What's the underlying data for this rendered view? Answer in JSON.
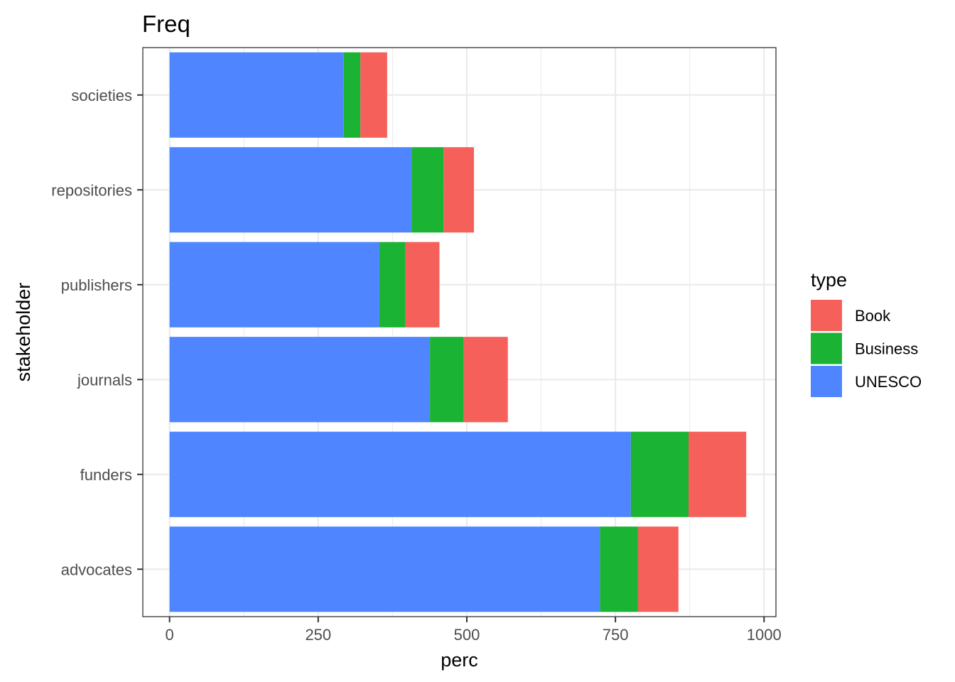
{
  "chart_data": {
    "type": "bar",
    "orientation": "horizontal",
    "stacked": true,
    "title": "Freq",
    "xlabel": "perc",
    "ylabel": "stakeholder",
    "categories": [
      "advocates",
      "funders",
      "journals",
      "publishers",
      "repositories",
      "societies"
    ],
    "xlim": [
      -45,
      1020
    ],
    "xticks": [
      0,
      250,
      500,
      750,
      1000
    ],
    "series": [
      {
        "name": "UNESCO",
        "color": "#4F86FF",
        "values": [
          724,
          776,
          438,
          353,
          407,
          293
        ]
      },
      {
        "name": "Business",
        "color": "#1AB333",
        "values": [
          64,
          97,
          57,
          44,
          54,
          28
        ]
      },
      {
        "name": "Book",
        "color": "#F5605A",
        "values": [
          68,
          97,
          74,
          57,
          51,
          45
        ]
      }
    ],
    "legend": {
      "title": "type",
      "position": "right",
      "order": [
        "Book",
        "Business",
        "UNESCO"
      ]
    },
    "grid": true
  }
}
